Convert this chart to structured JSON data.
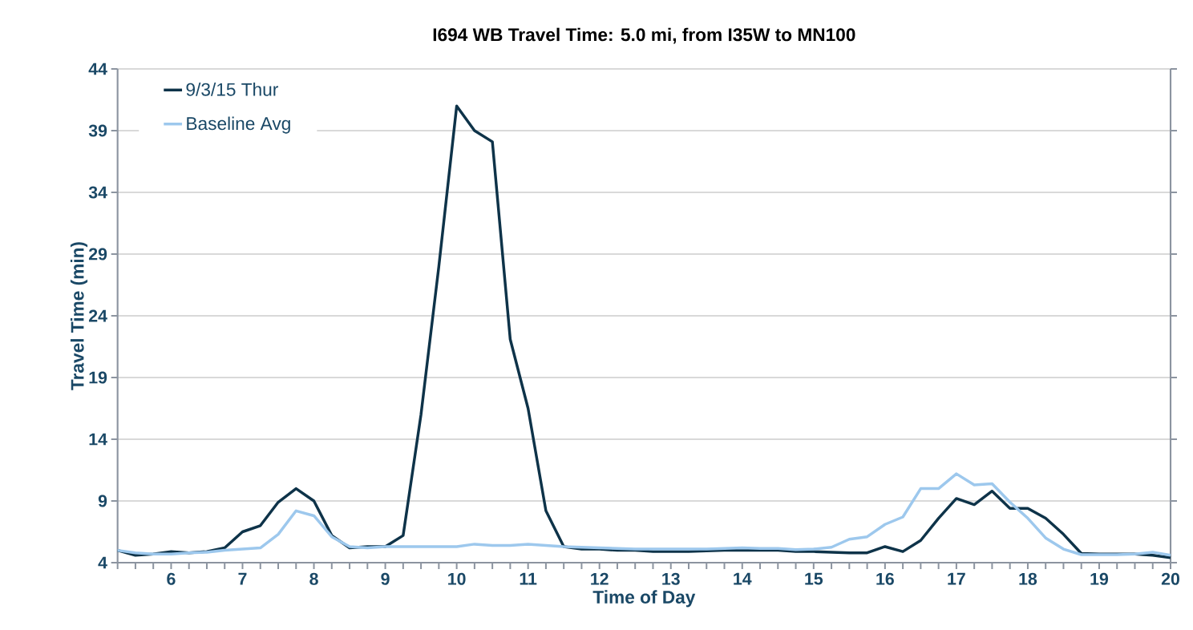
{
  "chart_data": {
    "type": "line",
    "title": "I694 WB Travel Time: 5.0 mi, from I35W to MN100",
    "xlabel": "Time of Day",
    "ylabel": "Travel Time (min)",
    "x": [
      5.25,
      5.5,
      5.75,
      6,
      6.25,
      6.5,
      6.75,
      7,
      7.25,
      7.5,
      7.75,
      8,
      8.25,
      8.5,
      8.75,
      9,
      9.25,
      9.5,
      9.75,
      10,
      10.25,
      10.5,
      10.75,
      11,
      11.25,
      11.5,
      11.75,
      12,
      12.25,
      12.5,
      12.75,
      13,
      13.25,
      13.5,
      13.75,
      14,
      14.25,
      14.5,
      14.75,
      15,
      15.25,
      15.5,
      15.75,
      16,
      16.25,
      16.5,
      16.75,
      17,
      17.25,
      17.5,
      17.75,
      18,
      18.25,
      18.5,
      18.75,
      19,
      19.25,
      19.5,
      19.75,
      20
    ],
    "series": [
      {
        "name": "9/3/15 Thur",
        "color": "#0e3349",
        "values": [
          5.0,
          4.6,
          4.7,
          4.9,
          4.8,
          4.9,
          5.2,
          6.5,
          7.0,
          8.9,
          10.0,
          9.0,
          6.2,
          5.2,
          5.3,
          5.3,
          6.2,
          16.0,
          28.0,
          41.0,
          39.0,
          38.1,
          22.1,
          16.5,
          8.2,
          5.3,
          5.1,
          5.1,
          5.0,
          5.0,
          4.9,
          4.9,
          4.9,
          4.95,
          5.0,
          5.0,
          5.0,
          5.0,
          4.9,
          4.9,
          4.85,
          4.8,
          4.8,
          5.3,
          4.9,
          5.8,
          7.6,
          9.2,
          8.7,
          9.8,
          8.4,
          8.4,
          7.6,
          6.3,
          4.75,
          4.7,
          4.7,
          4.7,
          4.6,
          4.4
        ]
      },
      {
        "name": "Baseline Avg",
        "color": "#9dc8ed",
        "values": [
          5.0,
          4.8,
          4.7,
          4.7,
          4.8,
          4.85,
          5.0,
          5.1,
          5.2,
          6.3,
          8.2,
          7.8,
          6.1,
          5.3,
          5.2,
          5.3,
          5.3,
          5.3,
          5.3,
          5.3,
          5.5,
          5.4,
          5.4,
          5.5,
          5.4,
          5.3,
          5.25,
          5.2,
          5.15,
          5.1,
          5.1,
          5.1,
          5.1,
          5.1,
          5.15,
          5.2,
          5.15,
          5.15,
          5.05,
          5.1,
          5.25,
          5.9,
          6.1,
          7.1,
          7.7,
          10.0,
          10.0,
          11.2,
          10.3,
          10.4,
          8.9,
          7.6,
          6.0,
          5.1,
          4.65,
          4.65,
          4.65,
          4.7,
          4.85,
          4.6
        ]
      }
    ],
    "xlim": [
      5.25,
      20
    ],
    "xticks": [
      {
        "value": 5.25,
        "label": null
      },
      {
        "value": 5.5,
        "label": null
      },
      {
        "value": 5.75,
        "label": null
      },
      6,
      {
        "value": 6.25,
        "label": null
      },
      {
        "value": 6.5,
        "label": null
      },
      {
        "value": 6.75,
        "label": null
      },
      7,
      {
        "value": 7.25,
        "label": null
      },
      {
        "value": 7.5,
        "label": null
      },
      {
        "value": 7.75,
        "label": null
      },
      8,
      {
        "value": 8.25,
        "label": null
      },
      {
        "value": 8.5,
        "label": null
      },
      {
        "value": 8.75,
        "label": null
      },
      9,
      {
        "value": 9.25,
        "label": null
      },
      {
        "value": 9.5,
        "label": null
      },
      {
        "value": 9.75,
        "label": null
      },
      10,
      {
        "value": 10.25,
        "label": null
      },
      {
        "value": 10.5,
        "label": null
      },
      {
        "value": 10.75,
        "label": null
      },
      11,
      {
        "value": 11.25,
        "label": null
      },
      {
        "value": 11.5,
        "label": null
      },
      {
        "value": 11.75,
        "label": null
      },
      12,
      {
        "value": 12.25,
        "label": null
      },
      {
        "value": 12.5,
        "label": null
      },
      {
        "value": 12.75,
        "label": null
      },
      13,
      {
        "value": 13.25,
        "label": null
      },
      {
        "value": 13.5,
        "label": null
      },
      {
        "value": 13.75,
        "label": null
      },
      14,
      {
        "value": 14.25,
        "label": null
      },
      {
        "value": 14.5,
        "label": null
      },
      {
        "value": 14.75,
        "label": null
      },
      15,
      {
        "value": 15.25,
        "label": null
      },
      {
        "value": 15.5,
        "label": null
      },
      {
        "value": 15.75,
        "label": null
      },
      16,
      {
        "value": 16.25,
        "label": null
      },
      {
        "value": 16.5,
        "label": null
      },
      {
        "value": 16.75,
        "label": null
      },
      17,
      {
        "value": 17.25,
        "label": null
      },
      {
        "value": 17.5,
        "label": null
      },
      {
        "value": 17.75,
        "label": null
      },
      18,
      {
        "value": 18.25,
        "label": null
      },
      {
        "value": 18.5,
        "label": null
      },
      {
        "value": 18.75,
        "label": null
      },
      19,
      {
        "value": 19.25,
        "label": null
      },
      {
        "value": 19.5,
        "label": null
      },
      {
        "value": 19.75,
        "label": null
      },
      20
    ],
    "ylim": [
      4,
      44
    ],
    "yticks": [
      4,
      9,
      14,
      19,
      24,
      29,
      34,
      39,
      44
    ],
    "grid": "y",
    "legend": "top left",
    "marker": "none",
    "line_style": "solid"
  }
}
